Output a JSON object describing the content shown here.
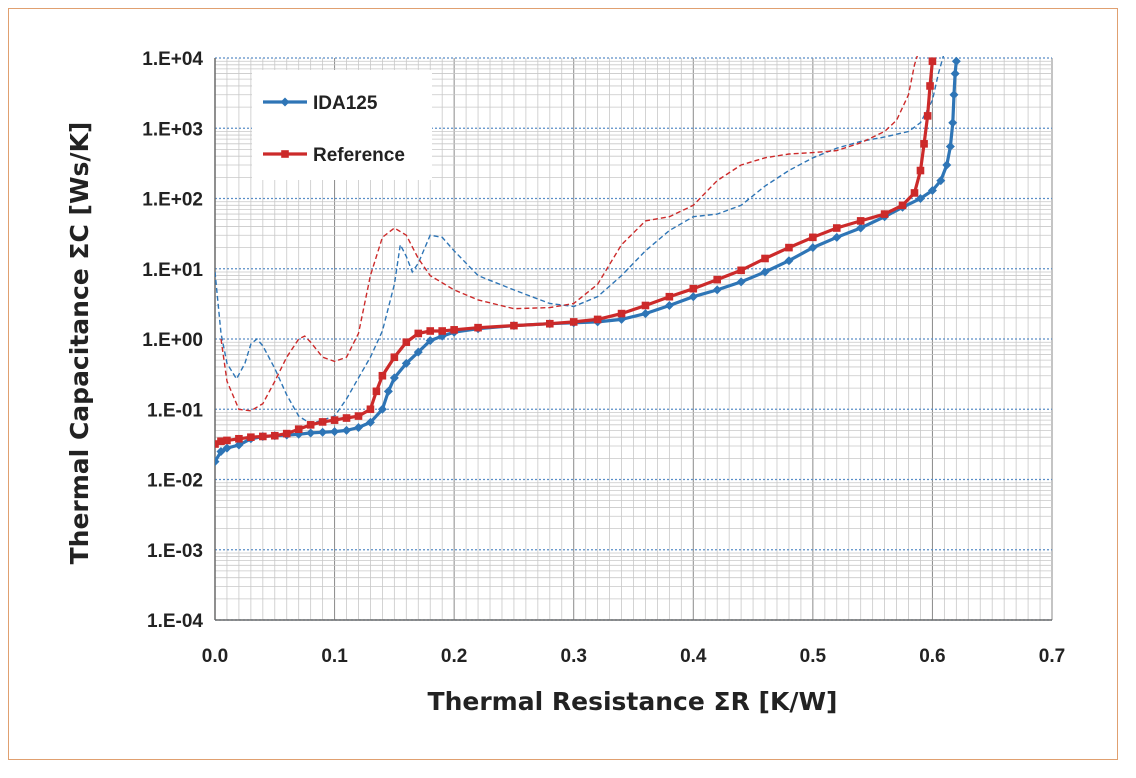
{
  "chart_data": {
    "type": "line",
    "xlabel": "Thermal Resistance ΣR [K/W]",
    "ylabel": "Thermal Capacitance ΣC [Ws/K]",
    "xlim": [
      0,
      0.7
    ],
    "ylim": [
      0.0001,
      10000
    ],
    "yscale": "log",
    "grid": true,
    "legend_position": "top-left",
    "x_ticks": [
      "0.0",
      "0.1",
      "0.2",
      "0.3",
      "0.4",
      "0.5",
      "0.6",
      "0.7"
    ],
    "y_ticks": [
      "1.E-04",
      "1.E-03",
      "1.E-02",
      "1.E-01",
      "1.E+00",
      "1.E+01",
      "1.E+02",
      "1.E+03",
      "1.E+04"
    ],
    "series": [
      {
        "name": "IDA125",
        "color": "#2e75b6",
        "marker": "diamond",
        "points": [
          [
            0.0,
            0.018
          ],
          [
            0.005,
            0.025
          ],
          [
            0.01,
            0.028
          ],
          [
            0.02,
            0.031
          ],
          [
            0.03,
            0.038
          ],
          [
            0.04,
            0.041
          ],
          [
            0.05,
            0.042
          ],
          [
            0.06,
            0.043
          ],
          [
            0.07,
            0.044
          ],
          [
            0.08,
            0.046
          ],
          [
            0.09,
            0.047
          ],
          [
            0.1,
            0.048
          ],
          [
            0.11,
            0.05
          ],
          [
            0.12,
            0.055
          ],
          [
            0.13,
            0.065
          ],
          [
            0.14,
            0.1
          ],
          [
            0.145,
            0.18
          ],
          [
            0.15,
            0.28
          ],
          [
            0.16,
            0.45
          ],
          [
            0.17,
            0.65
          ],
          [
            0.18,
            0.95
          ],
          [
            0.19,
            1.1
          ],
          [
            0.2,
            1.25
          ],
          [
            0.22,
            1.4
          ],
          [
            0.25,
            1.55
          ],
          [
            0.28,
            1.65
          ],
          [
            0.3,
            1.7
          ],
          [
            0.32,
            1.75
          ],
          [
            0.34,
            1.9
          ],
          [
            0.36,
            2.3
          ],
          [
            0.38,
            3.0
          ],
          [
            0.4,
            4.0
          ],
          [
            0.42,
            5.0
          ],
          [
            0.44,
            6.5
          ],
          [
            0.46,
            9.0
          ],
          [
            0.48,
            13.0
          ],
          [
            0.5,
            20.0
          ],
          [
            0.52,
            28.0
          ],
          [
            0.54,
            38.0
          ],
          [
            0.56,
            55.0
          ],
          [
            0.575,
            75.0
          ],
          [
            0.59,
            100.0
          ],
          [
            0.6,
            130.0
          ],
          [
            0.607,
            180.0
          ],
          [
            0.612,
            300.0
          ],
          [
            0.615,
            550.0
          ],
          [
            0.617,
            1200.0
          ],
          [
            0.618,
            3000.0
          ],
          [
            0.619,
            6000.0
          ],
          [
            0.62,
            9000.0
          ]
        ]
      },
      {
        "name": "Reference",
        "color": "#cc2a2a",
        "marker": "square",
        "points": [
          [
            0.0,
            0.032
          ],
          [
            0.005,
            0.035
          ],
          [
            0.01,
            0.036
          ],
          [
            0.02,
            0.038
          ],
          [
            0.03,
            0.04
          ],
          [
            0.04,
            0.041
          ],
          [
            0.05,
            0.042
          ],
          [
            0.06,
            0.045
          ],
          [
            0.07,
            0.052
          ],
          [
            0.08,
            0.06
          ],
          [
            0.09,
            0.066
          ],
          [
            0.1,
            0.07
          ],
          [
            0.11,
            0.075
          ],
          [
            0.12,
            0.08
          ],
          [
            0.13,
            0.1
          ],
          [
            0.135,
            0.18
          ],
          [
            0.14,
            0.3
          ],
          [
            0.15,
            0.55
          ],
          [
            0.16,
            0.9
          ],
          [
            0.17,
            1.2
          ],
          [
            0.18,
            1.3
          ],
          [
            0.19,
            1.3
          ],
          [
            0.2,
            1.35
          ],
          [
            0.22,
            1.45
          ],
          [
            0.25,
            1.55
          ],
          [
            0.28,
            1.65
          ],
          [
            0.3,
            1.75
          ],
          [
            0.32,
            1.9
          ],
          [
            0.34,
            2.3
          ],
          [
            0.36,
            3.0
          ],
          [
            0.38,
            4.0
          ],
          [
            0.4,
            5.2
          ],
          [
            0.42,
            7.0
          ],
          [
            0.44,
            9.5
          ],
          [
            0.46,
            14.0
          ],
          [
            0.48,
            20.0
          ],
          [
            0.5,
            28.0
          ],
          [
            0.52,
            38.0
          ],
          [
            0.54,
            48.0
          ],
          [
            0.56,
            60.0
          ],
          [
            0.575,
            80.0
          ],
          [
            0.585,
            120.0
          ],
          [
            0.59,
            250.0
          ],
          [
            0.593,
            600.0
          ],
          [
            0.596,
            1500.0
          ],
          [
            0.598,
            4000.0
          ],
          [
            0.6,
            9000.0
          ]
        ]
      },
      {
        "name": "",
        "color": "#2e75b6",
        "style": "dashed",
        "points": [
          [
            0.0,
            9.0
          ],
          [
            0.005,
            1.2
          ],
          [
            0.01,
            0.45
          ],
          [
            0.018,
            0.27
          ],
          [
            0.025,
            0.45
          ],
          [
            0.03,
            0.85
          ],
          [
            0.035,
            1.0
          ],
          [
            0.04,
            0.8
          ],
          [
            0.05,
            0.38
          ],
          [
            0.06,
            0.16
          ],
          [
            0.07,
            0.08
          ],
          [
            0.08,
            0.062
          ],
          [
            0.09,
            0.07
          ],
          [
            0.1,
            0.08
          ],
          [
            0.11,
            0.14
          ],
          [
            0.12,
            0.28
          ],
          [
            0.13,
            0.55
          ],
          [
            0.14,
            1.3
          ],
          [
            0.15,
            6.0
          ],
          [
            0.155,
            22.0
          ],
          [
            0.16,
            15.0
          ],
          [
            0.165,
            9.0
          ],
          [
            0.17,
            12.0
          ],
          [
            0.18,
            30.0
          ],
          [
            0.19,
            28.0
          ],
          [
            0.2,
            18.0
          ],
          [
            0.22,
            8.0
          ],
          [
            0.25,
            5.0
          ],
          [
            0.28,
            3.2
          ],
          [
            0.3,
            2.9
          ],
          [
            0.32,
            4.0
          ],
          [
            0.34,
            8.0
          ],
          [
            0.36,
            18.0
          ],
          [
            0.38,
            35.0
          ],
          [
            0.4,
            55.0
          ],
          [
            0.42,
            60.0
          ],
          [
            0.44,
            80.0
          ],
          [
            0.46,
            150.0
          ],
          [
            0.48,
            250.0
          ],
          [
            0.5,
            380.0
          ],
          [
            0.52,
            520.0
          ],
          [
            0.54,
            650.0
          ],
          [
            0.56,
            750.0
          ],
          [
            0.58,
            900.0
          ],
          [
            0.59,
            1200.0
          ],
          [
            0.6,
            2500.0
          ],
          [
            0.605,
            6000.0
          ],
          [
            0.61,
            12000.0
          ]
        ]
      },
      {
        "name": "",
        "color": "#cc2a2a",
        "style": "dashed",
        "points": [
          [
            0.005,
            1.0
          ],
          [
            0.01,
            0.25
          ],
          [
            0.02,
            0.1
          ],
          [
            0.03,
            0.095
          ],
          [
            0.04,
            0.12
          ],
          [
            0.05,
            0.25
          ],
          [
            0.06,
            0.55
          ],
          [
            0.07,
            1.0
          ],
          [
            0.075,
            1.1
          ],
          [
            0.08,
            0.9
          ],
          [
            0.09,
            0.55
          ],
          [
            0.1,
            0.48
          ],
          [
            0.11,
            0.55
          ],
          [
            0.12,
            1.2
          ],
          [
            0.13,
            8.0
          ],
          [
            0.14,
            28.0
          ],
          [
            0.15,
            38.0
          ],
          [
            0.16,
            30.0
          ],
          [
            0.17,
            14.0
          ],
          [
            0.18,
            8.0
          ],
          [
            0.2,
            5.0
          ],
          [
            0.22,
            3.6
          ],
          [
            0.25,
            2.7
          ],
          [
            0.28,
            2.8
          ],
          [
            0.3,
            3.2
          ],
          [
            0.32,
            6.0
          ],
          [
            0.34,
            22.0
          ],
          [
            0.36,
            48.0
          ],
          [
            0.38,
            55.0
          ],
          [
            0.4,
            80.0
          ],
          [
            0.42,
            180.0
          ],
          [
            0.44,
            300.0
          ],
          [
            0.46,
            380.0
          ],
          [
            0.48,
            430.0
          ],
          [
            0.5,
            450.0
          ],
          [
            0.52,
            480.0
          ],
          [
            0.54,
            620.0
          ],
          [
            0.56,
            900.0
          ],
          [
            0.57,
            1300.0
          ],
          [
            0.58,
            3000.0
          ],
          [
            0.585,
            8000.0
          ],
          [
            0.59,
            15000.0
          ]
        ]
      }
    ]
  }
}
